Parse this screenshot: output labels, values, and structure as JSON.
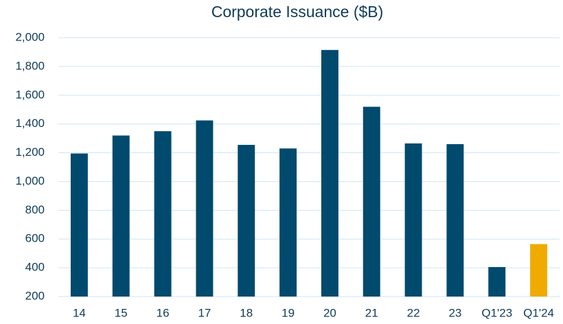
{
  "chart_data": {
    "type": "bar",
    "title": "Corporate Issuance ($B)",
    "categories": [
      "14",
      "15",
      "16",
      "17",
      "18",
      "19",
      "20",
      "21",
      "22",
      "23",
      "Q1'23",
      "Q1'24"
    ],
    "values": [
      1195,
      1320,
      1350,
      1425,
      1255,
      1230,
      1915,
      1520,
      1265,
      1260,
      405,
      565
    ],
    "colors": [
      "#004a6e",
      "#004a6e",
      "#004a6e",
      "#004a6e",
      "#004a6e",
      "#004a6e",
      "#004a6e",
      "#004a6e",
      "#004a6e",
      "#004a6e",
      "#004a6e",
      "#f0ab00"
    ],
    "ylim": [
      200,
      2000
    ],
    "yticks": [
      200,
      400,
      600,
      800,
      {
        "value": 1000,
        "label": "1,000"
      },
      {
        "value": 1200,
        "label": "1,200"
      },
      {
        "value": 1400,
        "label": "1,400"
      },
      {
        "value": 1600,
        "label": "1,600"
      },
      {
        "value": 1800,
        "label": "1,800"
      },
      {
        "value": 2000,
        "label": "2,000"
      }
    ],
    "grid": true
  }
}
